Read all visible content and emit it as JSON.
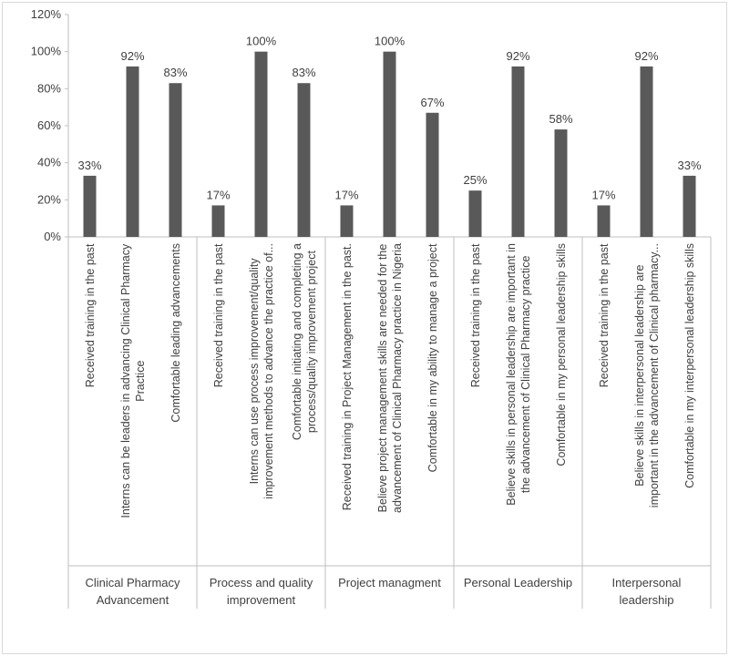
{
  "chart_data": {
    "type": "bar",
    "title": "",
    "xlabel": "",
    "ylabel": "",
    "ylim": [
      0,
      1.2
    ],
    "y_tick_labels": [
      "0%",
      "20%",
      "40%",
      "60%",
      "80%",
      "100%",
      "120%"
    ],
    "grid": false,
    "bar_color": "#595959",
    "groups": [
      {
        "label": "Clinical Pharmacy Advancement",
        "label_lines": [
          "Clinical Pharmacy",
          "Advancement"
        ],
        "items": [
          {
            "category": "Received training  in the past",
            "lines": [
              "Received training  in the past"
            ],
            "value": 0.33,
            "label": "33%"
          },
          {
            "category": "Interns can be leaders in advancing Clinical Pharmacy Practice",
            "lines": [
              "Interns can be leaders in advancing Clinical Pharmacy",
              "Practice"
            ],
            "value": 0.92,
            "label": "92%"
          },
          {
            "category": "Comfortable leading advancements",
            "lines": [
              "Comfortable leading advancements"
            ],
            "value": 0.83,
            "label": "83%"
          }
        ]
      },
      {
        "label": "Process and quality improvement",
        "label_lines": [
          "Process and quality",
          "improvement"
        ],
        "items": [
          {
            "category": "Received training in the past",
            "lines": [
              "Received training in the past"
            ],
            "value": 0.17,
            "label": "17%"
          },
          {
            "category": "Interns can use process improvement/quality improvement methods to advance the practice of...",
            "lines": [
              "Interns can use process improvement/quality",
              "improvement methods to advance the practice of..."
            ],
            "value": 1.0,
            "label": "100%"
          },
          {
            "category": "Comfortable initiating and completing a process/quality improvement project",
            "lines": [
              "Comfortable initiating and completing a",
              "process/quality improvement project"
            ],
            "value": 0.83,
            "label": "83%"
          }
        ]
      },
      {
        "label": "Project managment",
        "label_lines": [
          "Project managment"
        ],
        "items": [
          {
            "category": "Received training in Project Management in the past.",
            "lines": [
              "Received training in Project Management in the past."
            ],
            "value": 0.17,
            "label": "17%"
          },
          {
            "category": "Believe project management skills are needed for the advancement of Clinical Pharmacy practice in Nigeria",
            "lines": [
              "Believe project management skills are needed for the",
              "advancement of Clinical Pharmacy practice in Nigeria"
            ],
            "value": 1.0,
            "label": "100%"
          },
          {
            "category": "Comfortable in my ability to manage a project",
            "lines": [
              "Comfortable in my ability to manage a project"
            ],
            "value": 0.67,
            "label": "67%"
          }
        ]
      },
      {
        "label": "Personal Leadership",
        "label_lines": [
          "Personal Leadership"
        ],
        "items": [
          {
            "category": "Received training in the past",
            "lines": [
              "Received training in the past"
            ],
            "value": 0.25,
            "label": "25%"
          },
          {
            "category": "Believe skills in personal leadership are important in the advancement of Clinical Pharmacy practice",
            "lines": [
              "Believe skills in personal leadership are important in",
              "the advancement of Clinical Pharmacy practice"
            ],
            "value": 0.92,
            "label": "92%"
          },
          {
            "category": "Comfortable in my personal leadership skills",
            "lines": [
              "Comfortable in my personal leadership skills"
            ],
            "value": 0.58,
            "label": "58%"
          }
        ]
      },
      {
        "label": "Interpersonal leadership",
        "label_lines": [
          "Interpersonal",
          "leadership"
        ],
        "items": [
          {
            "category": "Received training  in the past",
            "lines": [
              "Received training  in the past"
            ],
            "value": 0.17,
            "label": "17%"
          },
          {
            "category": "Believe skills in interpersonal leadership are important in the advancement of Clinical pharmacy...",
            "lines": [
              "Believe skills in interpersonal leadership are",
              "important in the advancement of Clinical pharmacy..."
            ],
            "value": 0.92,
            "label": "92%"
          },
          {
            "category": "Comfortable in my interpersonal leadership skills",
            "lines": [
              "Comfortable in my interpersonal leadership skills"
            ],
            "value": 0.33,
            "label": "33%"
          }
        ]
      }
    ]
  }
}
